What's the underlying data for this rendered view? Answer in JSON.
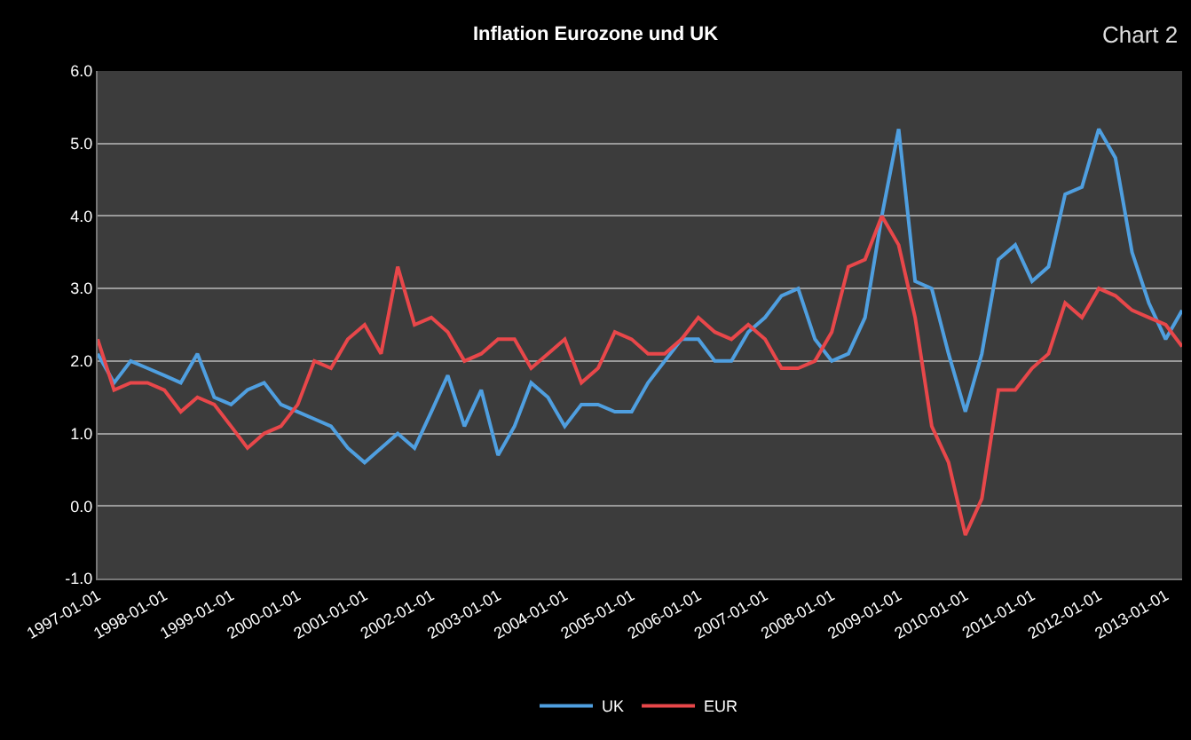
{
  "chart_data": {
    "type": "line",
    "title": "Inflation Eurozone und UK",
    "annotations": [
      "Chart 2"
    ],
    "x": [
      "1997-01",
      "1997-04",
      "1997-07",
      "1997-10",
      "1998-01",
      "1998-04",
      "1998-07",
      "1998-10",
      "1999-01",
      "1999-04",
      "1999-07",
      "1999-10",
      "2000-01",
      "2000-04",
      "2000-07",
      "2000-10",
      "2001-01",
      "2001-04",
      "2001-07",
      "2001-10",
      "2002-01",
      "2002-04",
      "2002-07",
      "2002-10",
      "2003-01",
      "2003-04",
      "2003-07",
      "2003-10",
      "2004-01",
      "2004-04",
      "2004-07",
      "2004-10",
      "2005-01",
      "2005-04",
      "2005-07",
      "2005-10",
      "2006-01",
      "2006-04",
      "2006-07",
      "2006-10",
      "2007-01",
      "2007-04",
      "2007-07",
      "2007-10",
      "2008-01",
      "2008-04",
      "2008-07",
      "2008-10",
      "2009-01",
      "2009-04",
      "2009-07",
      "2009-10",
      "2010-01",
      "2010-04",
      "2010-07",
      "2010-10",
      "2011-01",
      "2011-04",
      "2011-07",
      "2011-10",
      "2012-01",
      "2012-04",
      "2012-07",
      "2012-10",
      "2013-01",
      "2013-04"
    ],
    "series": [
      {
        "name": "UK",
        "color": "#4f9fe0",
        "values": [
          2.1,
          1.7,
          2.0,
          1.9,
          1.8,
          1.7,
          2.1,
          1.5,
          1.4,
          1.6,
          1.7,
          1.4,
          1.3,
          1.2,
          1.1,
          0.8,
          0.6,
          0.8,
          1.0,
          0.8,
          1.3,
          1.8,
          1.1,
          1.6,
          0.7,
          1.1,
          1.7,
          1.5,
          1.1,
          1.4,
          1.4,
          1.3,
          1.3,
          1.7,
          2.0,
          2.3,
          2.3,
          2.0,
          2.0,
          2.4,
          2.6,
          2.9,
          3.0,
          2.3,
          2.0,
          2.1,
          2.6,
          4.0,
          5.2,
          3.1,
          3.0,
          2.1,
          1.3,
          2.1,
          3.4,
          3.6,
          3.1,
          3.3,
          4.3,
          4.4,
          5.2,
          4.8,
          3.5,
          2.8,
          2.3,
          2.7
        ]
      },
      {
        "name": "EUR",
        "color": "#e8474a",
        "values": [
          2.3,
          1.6,
          1.7,
          1.7,
          1.6,
          1.3,
          1.5,
          1.4,
          1.1,
          0.8,
          1.0,
          1.1,
          1.4,
          2.0,
          1.9,
          2.3,
          2.5,
          2.1,
          3.3,
          2.5,
          2.6,
          2.4,
          2.0,
          2.1,
          2.3,
          2.3,
          1.9,
          2.1,
          2.3,
          1.7,
          1.9,
          2.4,
          2.3,
          2.1,
          2.1,
          2.3,
          2.6,
          2.4,
          2.3,
          2.5,
          2.3,
          1.9,
          1.9,
          2.0,
          2.4,
          3.3,
          3.4,
          4.0,
          3.6,
          2.6,
          1.1,
          0.6,
          -0.4,
          0.1,
          1.6,
          1.6,
          1.9,
          2.1,
          2.8,
          2.6,
          3.0,
          2.9,
          2.7,
          2.6,
          2.5,
          2.2
        ]
      }
    ],
    "xlim": [
      "1997-01-01",
      "2013-04-01"
    ],
    "xticks": [
      "1997-01-01",
      "1998-01-01",
      "1999-01-01",
      "2000-01-01",
      "2001-01-01",
      "2002-01-01",
      "2003-01-01",
      "2004-01-01",
      "2005-01-01",
      "2006-01-01",
      "2007-01-01",
      "2008-01-01",
      "2009-01-01",
      "2010-01-01",
      "2011-01-01",
      "2012-01-01",
      "2013-01-01"
    ],
    "ylim": [
      -1,
      6
    ],
    "yticks": [
      {
        "value": -1,
        "label": "-1.0"
      },
      {
        "value": 0,
        "label": "0.0"
      },
      {
        "value": 1,
        "label": "1.0"
      },
      {
        "value": 2,
        "label": "2.0"
      },
      {
        "value": 3,
        "label": "3.0"
      },
      {
        "value": 4,
        "label": "4.0"
      },
      {
        "value": 5,
        "label": "5.0"
      },
      {
        "value": 6,
        "label": "6.0"
      }
    ],
    "grid": "y",
    "legend": "bottom",
    "marker": "none",
    "line_style": "solid"
  }
}
